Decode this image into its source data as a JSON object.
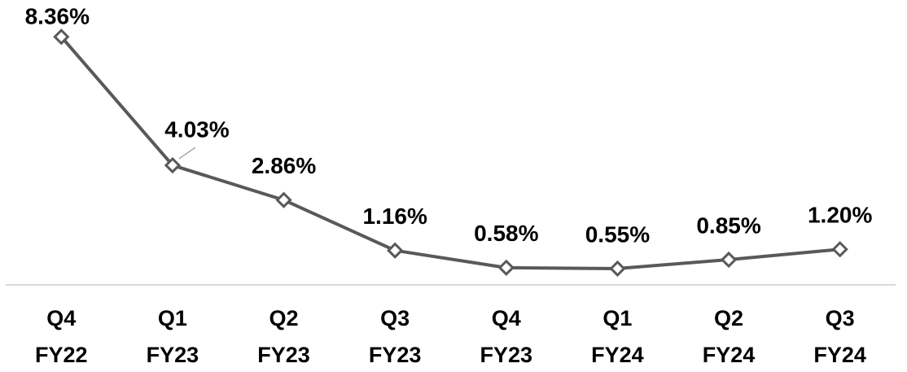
{
  "chart_data": {
    "type": "line",
    "categories": [
      [
        "Q4",
        "FY22"
      ],
      [
        "Q1",
        "FY23"
      ],
      [
        "Q2",
        "FY23"
      ],
      [
        "Q3",
        "FY23"
      ],
      [
        "Q4",
        "FY23"
      ],
      [
        "Q1",
        "FY24"
      ],
      [
        "Q2",
        "FY24"
      ],
      [
        "Q3",
        "FY24"
      ]
    ],
    "series": [
      {
        "color": "#595959",
        "values": [
          8.36,
          4.03,
          2.86,
          1.16,
          0.58,
          0.55,
          0.85,
          1.2
        ],
        "value_labels": [
          "8.36%",
          "4.03%",
          "2.86%",
          "1.16%",
          "0.58%",
          "0.55%",
          "0.85%",
          "1.20%"
        ]
      }
    ],
    "ylim": [
      0,
      9.6
    ]
  }
}
